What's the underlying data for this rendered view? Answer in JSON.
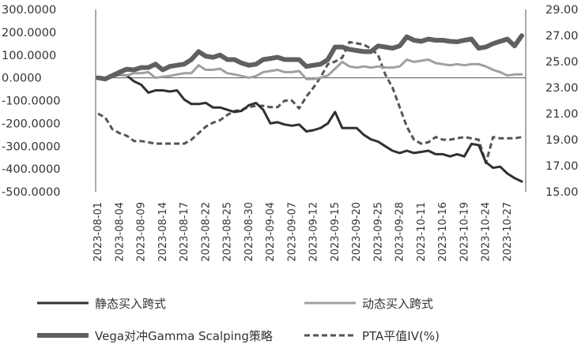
{
  "chart_data": {
    "type": "line",
    "title": "",
    "x": [
      "2023-08-01",
      "2023-08-02",
      "2023-08-03",
      "2023-08-04",
      "2023-08-07",
      "2023-08-08",
      "2023-08-09",
      "2023-08-10",
      "2023-08-11",
      "2023-08-14",
      "2023-08-15",
      "2023-08-16",
      "2023-08-17",
      "2023-08-18",
      "2023-08-21",
      "2023-08-22",
      "2023-08-23",
      "2023-08-24",
      "2023-08-25",
      "2023-08-28",
      "2023-08-29",
      "2023-08-30",
      "2023-08-31",
      "2023-09-01",
      "2023-09-04",
      "2023-09-05",
      "2023-09-06",
      "2023-09-07",
      "2023-09-08",
      "2023-09-11",
      "2023-09-12",
      "2023-09-13",
      "2023-09-14",
      "2023-09-15",
      "2023-09-18",
      "2023-09-19",
      "2023-09-20",
      "2023-09-21",
      "2023-09-22",
      "2023-09-25",
      "2023-09-26",
      "2023-09-27",
      "2023-09-28",
      "2023-10-09",
      "2023-10-10",
      "2023-10-11",
      "2023-10-12",
      "2023-10-13",
      "2023-10-16",
      "2023-10-17",
      "2023-10-18",
      "2023-10-19",
      "2023-10-20",
      "2023-10-23",
      "2023-10-24",
      "2023-10-25",
      "2023-10-26",
      "2023-10-27",
      "2023-10-30",
      "2023-10-31"
    ],
    "x_tick_labels": [
      "2023-08-01",
      "2023-08-04",
      "2023-08-09",
      "2023-08-14",
      "2023-08-17",
      "2023-08-22",
      "2023-08-25",
      "2023-08-30",
      "2023-09-04",
      "2023-09-07",
      "2023-09-12",
      "2023-09-15",
      "2023-09-20",
      "2023-09-25",
      "2023-09-28",
      "2023-10-11",
      "2023-10-16",
      "2023-10-19",
      "2023-10-24",
      "2023-10-27"
    ],
    "x_tick_every": 3,
    "left_axis": {
      "ylim": [
        -500,
        300
      ],
      "ticks": [
        300,
        200,
        100,
        0,
        -100,
        -200,
        -300,
        -400,
        -500
      ],
      "tick_labels": [
        "300.0000",
        "200.0000",
        "100.0000",
        "0.0000",
        "-100.0000",
        "-200.0000",
        "-300.0000",
        "-400.0000",
        "-500.0000"
      ]
    },
    "right_axis": {
      "ylim": [
        15,
        29
      ],
      "ticks": [
        29,
        27,
        25,
        23,
        21,
        19,
        17,
        15
      ],
      "tick_labels": [
        "29.00",
        "27.00",
        "25.00",
        "23.00",
        "21.00",
        "19.00",
        "17.00",
        "15.00"
      ]
    },
    "series": [
      {
        "name": "静态买入跨式",
        "axis": "left",
        "color": "#303030",
        "style": "solid",
        "width": 3,
        "values": [
          0,
          -5,
          5,
          15,
          10,
          -15,
          -30,
          -65,
          -55,
          -55,
          -60,
          -55,
          -95,
          -115,
          -115,
          -110,
          -130,
          -130,
          -140,
          -150,
          -145,
          -120,
          -110,
          -140,
          -200,
          -195,
          -205,
          -210,
          -205,
          -235,
          -230,
          -220,
          -200,
          -150,
          -220,
          -220,
          -220,
          -250,
          -270,
          -280,
          -300,
          -320,
          -330,
          -320,
          -330,
          -325,
          -320,
          -335,
          -335,
          -345,
          -335,
          -345,
          -290,
          -295,
          -370,
          -395,
          -390,
          -420,
          -440,
          -455
        ]
      },
      {
        "name": "动态买入跨式",
        "axis": "left",
        "color": "#a0a0a0",
        "style": "solid",
        "width": 3,
        "values": [
          0,
          -5,
          8,
          18,
          10,
          20,
          20,
          25,
          0,
          5,
          8,
          15,
          20,
          20,
          55,
          35,
          35,
          40,
          20,
          15,
          8,
          0,
          8,
          25,
          30,
          35,
          25,
          25,
          30,
          -5,
          -5,
          0,
          10,
          40,
          70,
          50,
          45,
          50,
          45,
          50,
          45,
          45,
          50,
          80,
          70,
          75,
          80,
          65,
          60,
          55,
          60,
          55,
          60,
          60,
          50,
          35,
          25,
          10,
          15,
          15
        ]
      },
      {
        "name": "Vega对冲Gamma Scalping策略",
        "axis": "left",
        "color": "#606060",
        "style": "solid",
        "width": 6,
        "values": [
          0,
          -5,
          10,
          25,
          38,
          35,
          45,
          45,
          60,
          35,
          50,
          55,
          60,
          80,
          115,
          95,
          90,
          100,
          80,
          80,
          65,
          55,
          60,
          80,
          85,
          90,
          80,
          80,
          80,
          50,
          55,
          60,
          80,
          135,
          135,
          125,
          120,
          115,
          115,
          140,
          135,
          130,
          140,
          180,
          165,
          160,
          170,
          165,
          165,
          160,
          158,
          165,
          170,
          130,
          135,
          150,
          160,
          170,
          140,
          185
        ]
      },
      {
        "name": "PTA平值IV(%)",
        "axis": "right",
        "color": "#555555",
        "style": "dashed",
        "width": 3,
        "values": [
          21.0,
          20.7,
          19.8,
          19.5,
          19.3,
          18.9,
          18.9,
          18.8,
          18.7,
          18.7,
          18.7,
          18.7,
          18.7,
          19.0,
          19.5,
          20.0,
          20.3,
          20.5,
          20.9,
          21.2,
          21.3,
          21.5,
          21.6,
          21.6,
          21.5,
          21.5,
          22.0,
          22.0,
          21.4,
          22.3,
          23.0,
          23.8,
          24.8,
          25.0,
          25.3,
          26.5,
          26.4,
          26.3,
          26.0,
          25.5,
          24.0,
          23.0,
          21.5,
          20.0,
          19.0,
          18.7,
          18.8,
          19.2,
          19.0,
          19.0,
          19.1,
          19.2,
          19.1,
          19.0,
          17.2,
          19.2,
          19.1,
          19.1,
          19.1,
          19.2
        ]
      }
    ],
    "legend": {
      "placement": "bottom",
      "rows": [
        [
          "静态买入跨式",
          "动态买入跨式"
        ],
        [
          "Vega对冲Gamma Scalping策略",
          "PTA平值IV(%)"
        ]
      ]
    },
    "grid": false
  }
}
